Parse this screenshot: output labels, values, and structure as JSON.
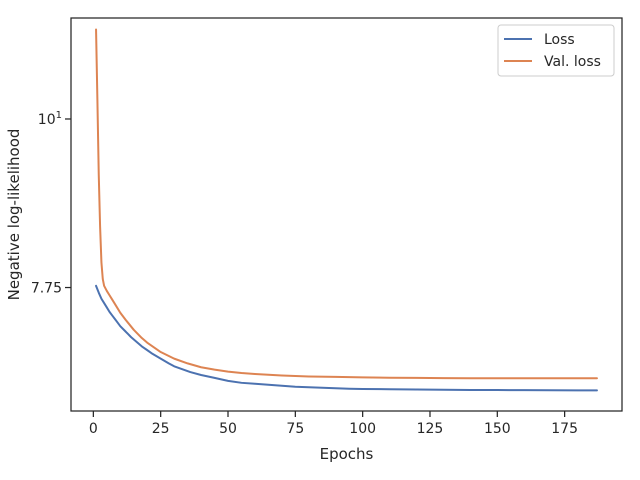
{
  "chart_data": {
    "type": "line",
    "title": "",
    "xlabel": "Epochs",
    "ylabel": "Negative log-likelihood",
    "xlim": [
      -8.3,
      196.3
    ],
    "ylim": [
      6.43,
      11.65
    ],
    "yscale": "log",
    "grid": false,
    "legend_position": "top-right",
    "x_ticks": [
      0,
      25,
      50,
      75,
      100,
      125,
      150,
      175
    ],
    "x_tick_labels": [
      "0",
      "25",
      "50",
      "75",
      "100",
      "125",
      "150",
      "175"
    ],
    "y_ticks": [
      7.75,
      10
    ],
    "y_tick_labels": [
      "7.75",
      "10"
    ],
    "y_tick_superscripts": [
      "",
      "1"
    ],
    "series": [
      {
        "name": "Loss",
        "color": "#4c72b0",
        "x": [
          1,
          2,
          3,
          4,
          5,
          6,
          7,
          8,
          9,
          10,
          12,
          14,
          16,
          18,
          20,
          22,
          25,
          28,
          30,
          33,
          36,
          40,
          45,
          50,
          55,
          60,
          65,
          70,
          75,
          80,
          85,
          90,
          95,
          100,
          110,
          120,
          130,
          140,
          150,
          160,
          170,
          180,
          187
        ],
        "y": [
          7.77,
          7.69,
          7.62,
          7.57,
          7.52,
          7.47,
          7.43,
          7.39,
          7.35,
          7.31,
          7.25,
          7.19,
          7.14,
          7.09,
          7.05,
          7.01,
          6.96,
          6.91,
          6.88,
          6.85,
          6.82,
          6.79,
          6.76,
          6.73,
          6.71,
          6.7,
          6.69,
          6.68,
          6.67,
          6.665,
          6.66,
          6.655,
          6.65,
          6.648,
          6.645,
          6.643,
          6.64,
          6.638,
          6.637,
          6.636,
          6.635,
          6.634,
          6.634
        ]
      },
      {
        "name": "Val. loss",
        "color": "#dd8452",
        "x": [
          1,
          1.5,
          2,
          2.5,
          3,
          3.5,
          4,
          5,
          6,
          7,
          8,
          10,
          12,
          15,
          18,
          20,
          25,
          30,
          35,
          40,
          45,
          50,
          55,
          60,
          70,
          80,
          90,
          100,
          110,
          120,
          130,
          140,
          150,
          160,
          170,
          180,
          187
        ],
        "y": [
          11.45,
          10.3,
          9.2,
          8.5,
          8.05,
          7.85,
          7.77,
          7.71,
          7.66,
          7.61,
          7.56,
          7.46,
          7.38,
          7.27,
          7.18,
          7.13,
          7.03,
          6.96,
          6.91,
          6.87,
          6.845,
          6.825,
          6.81,
          6.8,
          6.785,
          6.775,
          6.77,
          6.765,
          6.762,
          6.76,
          6.758,
          6.757,
          6.756,
          6.756,
          6.756,
          6.756,
          6.757
        ]
      }
    ]
  }
}
